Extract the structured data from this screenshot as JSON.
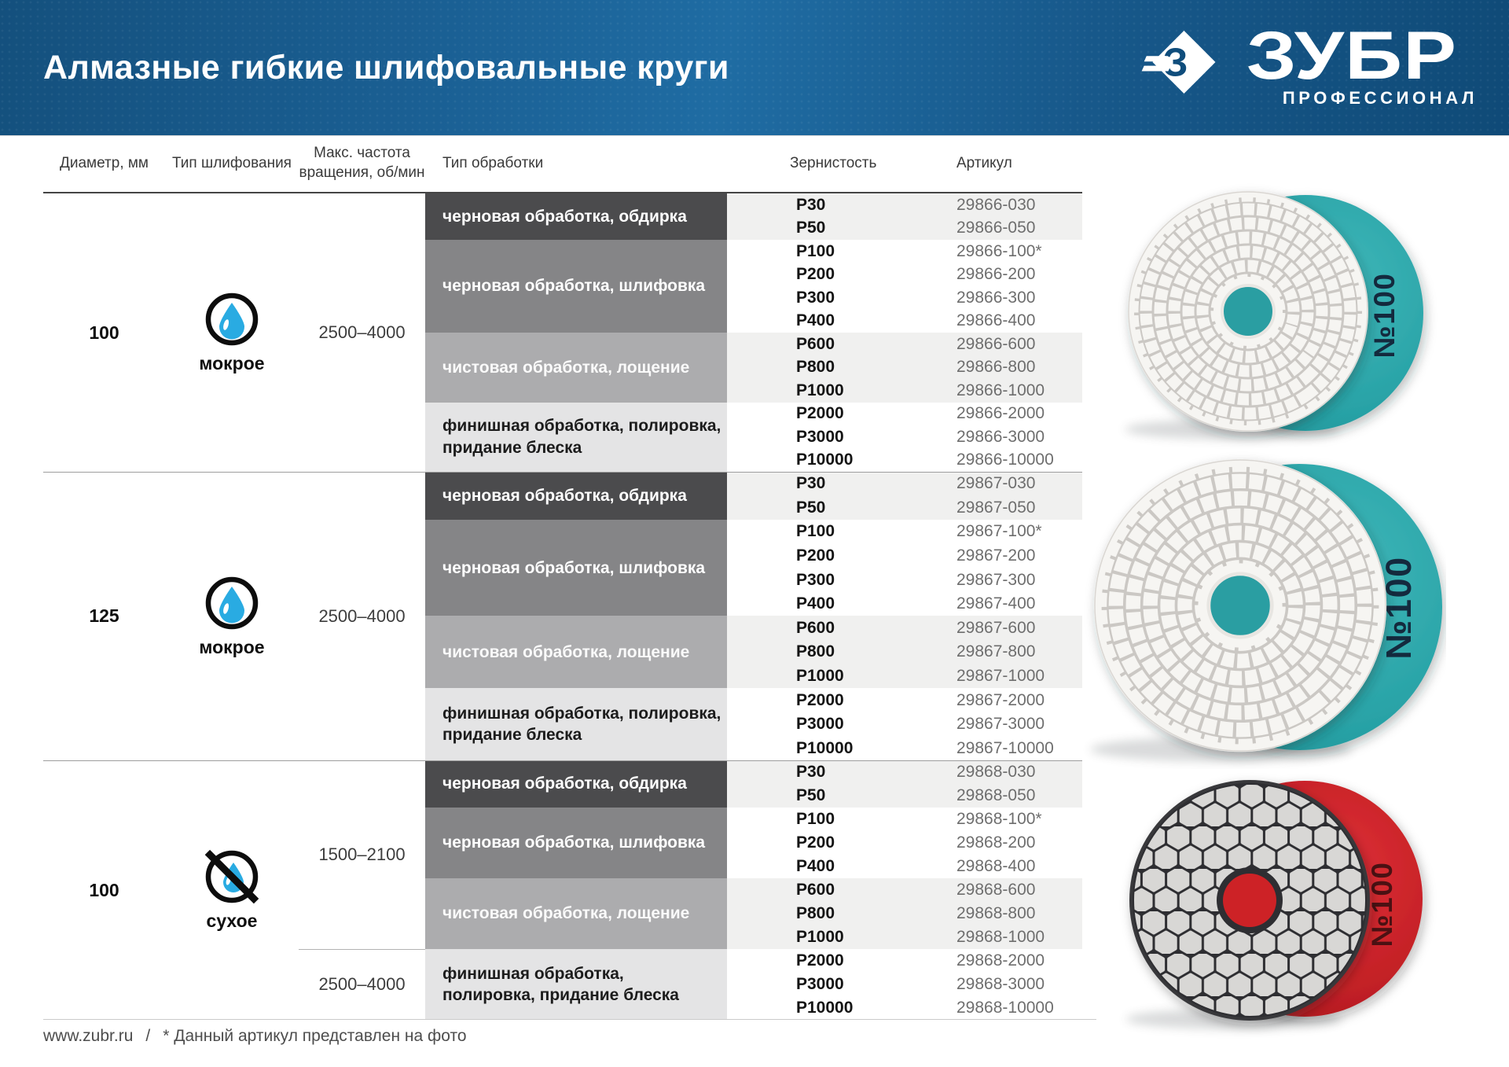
{
  "header": {
    "title": "Алмазные гибкие шлифовальные круги",
    "brand": "ЗУБР",
    "brand_initial": "З",
    "brand_subtitle": "ПРОФЕССИОНАЛ"
  },
  "table": {
    "headers": {
      "diameter": "Диаметр, мм",
      "grind_type": "Тип шлифования",
      "max_freq_line1": "Макс. частота",
      "max_freq_line2": "вращения, об/мин",
      "processing": "Тип обработки",
      "grit": "Зернистость",
      "sku": "Артикул"
    }
  },
  "groups": [
    {
      "diameter": "100",
      "grinding_label": "мокрое",
      "icon": "wet",
      "speeds": [
        "2500–4000"
      ],
      "blocks": [
        {
          "label": "черновая обработка, обдирка",
          "shade": "dark",
          "rows": [
            {
              "grit": "P30",
              "sku": "29866-030"
            },
            {
              "grit": "P50",
              "sku": "29866-050"
            }
          ]
        },
        {
          "label": "черновая обработка, шлифовка",
          "shade": "medium",
          "rows": [
            {
              "grit": "P100",
              "sku": "29866-100*"
            },
            {
              "grit": "P200",
              "sku": "29866-200"
            },
            {
              "grit": "P300",
              "sku": "29866-300"
            },
            {
              "grit": "P400",
              "sku": "29866-400"
            }
          ]
        },
        {
          "label": "чистовая обработка, лощение",
          "shade": "light",
          "rows": [
            {
              "grit": "P600",
              "sku": "29866-600"
            },
            {
              "grit": "P800",
              "sku": "29866-800"
            },
            {
              "grit": "P1000",
              "sku": "29866-1000"
            }
          ]
        },
        {
          "label": "финишная обработка, полировка,\nпридание блеска",
          "shade": "lighter",
          "rows": [
            {
              "grit": "P2000",
              "sku": "29866-2000"
            },
            {
              "grit": "P3000",
              "sku": "29866-3000"
            },
            {
              "grit": "P10000",
              "sku": "29866-10000"
            }
          ]
        }
      ]
    },
    {
      "diameter": "125",
      "grinding_label": "мокрое",
      "icon": "wet",
      "speeds": [
        "2500–4000"
      ],
      "blocks": [
        {
          "label": "черновая обработка, обдирка",
          "shade": "dark",
          "rows": [
            {
              "grit": "P30",
              "sku": "29867-030"
            },
            {
              "grit": "P50",
              "sku": "29867-050"
            }
          ]
        },
        {
          "label": "черновая обработка, шлифовка",
          "shade": "medium",
          "rows": [
            {
              "grit": "P100",
              "sku": "29867-100*"
            },
            {
              "grit": "P200",
              "sku": "29867-200"
            },
            {
              "grit": "P300",
              "sku": "29867-300"
            },
            {
              "grit": "P400",
              "sku": "29867-400"
            }
          ]
        },
        {
          "label": "чистовая обработка, лощение",
          "shade": "light",
          "rows": [
            {
              "grit": "P600",
              "sku": "29867-600"
            },
            {
              "grit": "P800",
              "sku": "29867-800"
            },
            {
              "grit": "P1000",
              "sku": "29867-1000"
            }
          ]
        },
        {
          "label": "финишная обработка, полировка,\nпридание блеска",
          "shade": "lighter",
          "rows": [
            {
              "grit": "P2000",
              "sku": "29867-2000"
            },
            {
              "grit": "P3000",
              "sku": "29867-3000"
            },
            {
              "grit": "P10000",
              "sku": "29867-10000"
            }
          ]
        }
      ]
    },
    {
      "diameter": "100",
      "grinding_label": "сухое",
      "icon": "dry",
      "speeds": [
        "1500–2100",
        "2500–4000"
      ],
      "blocks": [
        {
          "label": "черновая обработка, обдирка",
          "shade": "dark",
          "rows": [
            {
              "grit": "P30",
              "sku": "29868-030"
            },
            {
              "grit": "P50",
              "sku": "29868-050"
            }
          ]
        },
        {
          "label": "черновая обработка, шлифовка",
          "shade": "medium",
          "rows": [
            {
              "grit": "P100",
              "sku": "29868-100*"
            },
            {
              "grit": "P200",
              "sku": "29868-200"
            },
            {
              "grit": "P400",
              "sku": "29868-400"
            }
          ]
        },
        {
          "label": "чистовая обработка, лощение",
          "shade": "light",
          "rows": [
            {
              "grit": "P600",
              "sku": "29868-600"
            },
            {
              "grit": "P800",
              "sku": "29868-800"
            },
            {
              "grit": "P1000",
              "sku": "29868-1000"
            }
          ]
        },
        {
          "label": "финишная обработка,\nполировка, придание блеска",
          "shade": "lighter",
          "rows": [
            {
              "grit": "P2000",
              "sku": "29868-2000"
            },
            {
              "grit": "P3000",
              "sku": "29868-3000"
            },
            {
              "grit": "P10000",
              "sku": "29868-10000"
            }
          ]
        }
      ]
    }
  ],
  "products": [
    {
      "badge": "№100",
      "variant": "wet-teal"
    },
    {
      "badge": "№100",
      "variant": "wet-teal"
    },
    {
      "badge": "№100",
      "variant": "dry-red"
    }
  ],
  "footer": {
    "website": "www.zubr.ru",
    "divider": "/",
    "note": "* Данный артикул представлен на фото"
  },
  "theme": {
    "header_blue_left": "#14507d",
    "header_blue_center": "#1f6ca3",
    "header_blue_right": "#0f4a77",
    "block_dark": "#4b4b4d",
    "block_medium": "#858587",
    "block_light": "#acacae",
    "block_lighter": "#e4e4e5",
    "band_tint": "#f0f0ef",
    "drop_blue": "#29abe2",
    "pad_teal": "#2aa6a9",
    "pad_red": "#cd2127"
  }
}
